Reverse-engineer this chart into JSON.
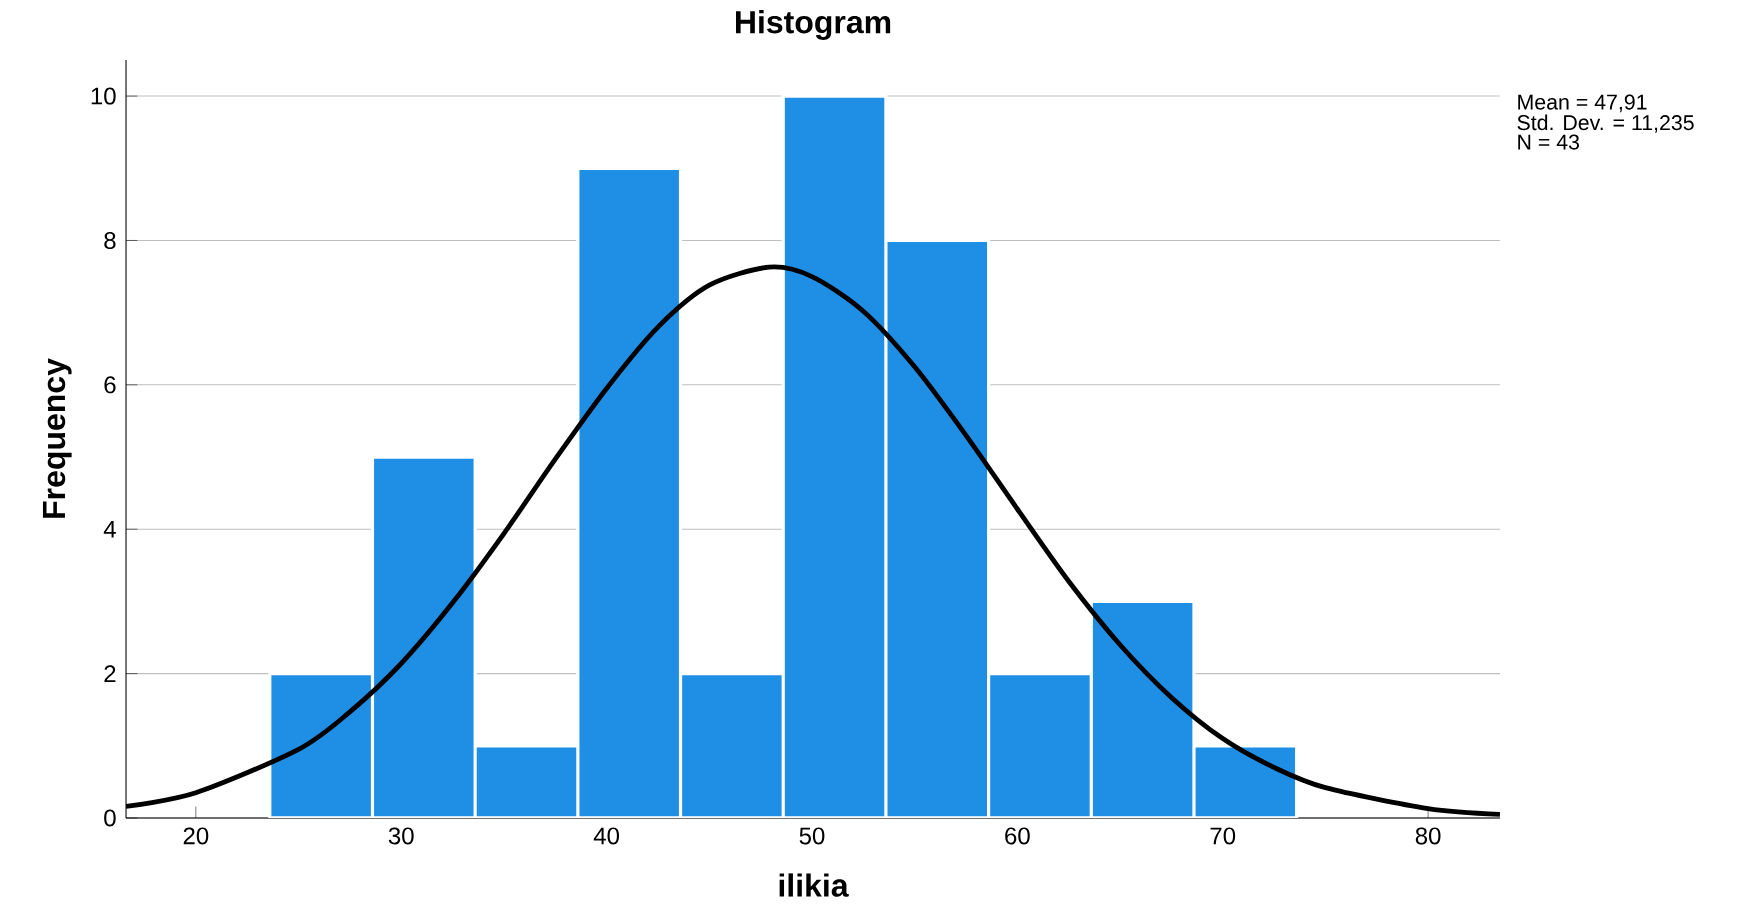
{
  "chart_data": {
    "type": "histogram",
    "title": "Histogram",
    "xlabel": "ilikia",
    "ylabel": "Frequency",
    "bins": [
      23.6,
      28.6,
      33.6,
      38.6,
      43.6,
      48.6,
      53.6,
      58.6,
      63.6,
      68.6,
      73.6
    ],
    "values": [
      2,
      5,
      1,
      9,
      2,
      10,
      8,
      2,
      3,
      1
    ],
    "color": "#1f8fe6",
    "series": [
      {
        "type": "line",
        "color": "#000000",
        "x": [
          16.6,
          20,
          25,
          27.5,
          30,
          32.5,
          35,
          37.5,
          40,
          42.5,
          45,
          47.91,
          50,
          52.5,
          55,
          57.5,
          60,
          62.5,
          65,
          67.5,
          70,
          72.5,
          75,
          80,
          83.5
        ],
        "values": [
          0.16,
          0.35,
          0.95,
          1.47,
          2.14,
          2.98,
          3.94,
          4.97,
          5.95,
          6.8,
          7.38,
          7.63,
          7.5,
          7.02,
          6.25,
          5.3,
          4.28,
          3.28,
          2.4,
          1.67,
          1.1,
          0.7,
          0.42,
          0.13,
          0.05
        ]
      }
    ],
    "xlim": [
      16.6,
      83.5
    ],
    "ylim": [
      0,
      10.5
    ],
    "xticks": [
      20,
      30,
      40,
      50,
      60,
      70,
      80
    ],
    "yticks": [
      0,
      2,
      4,
      6,
      8,
      10
    ],
    "grid": "y",
    "annotations": [
      "Mean = 47,91",
      "Std. Dev. = 11,235",
      "N = 43"
    ]
  }
}
